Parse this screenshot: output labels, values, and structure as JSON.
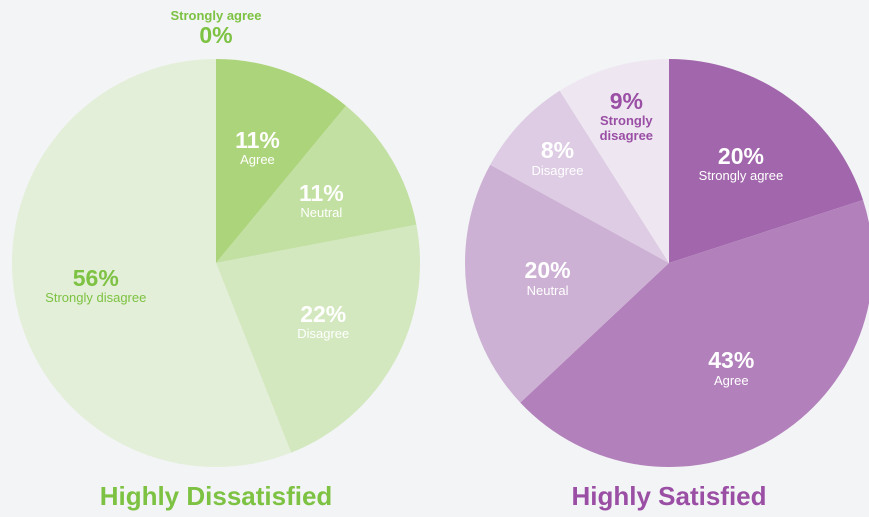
{
  "chart_data": [
    {
      "type": "pie",
      "title": "Highly Dissatisfied",
      "categories": [
        "Strongly agree",
        "Agree",
        "Neutral",
        "Disagree",
        "Strongly disagree"
      ],
      "values": [
        0,
        11,
        11,
        22,
        56
      ],
      "value_labels": [
        "0%",
        "11%",
        "11%",
        "22%",
        "56%"
      ],
      "colors": [
        "#8cc63f",
        "#acd47a",
        "#c2e0a2",
        "#d3e8bf",
        "#e3efd8"
      ],
      "label_colors": [
        "#7dc242",
        "#ffffff",
        "#ffffff",
        "#ffffff",
        "#7dc242"
      ],
      "title_color": "#7dc242"
    },
    {
      "type": "pie",
      "title": "Highly Satisfied",
      "categories": [
        "Strongly agree",
        "Agree",
        "Neutral",
        "Disagree",
        "Strongly disagree"
      ],
      "values": [
        20,
        43,
        20,
        8,
        9
      ],
      "value_labels": [
        "20%",
        "43%",
        "20%",
        "8%",
        "9%"
      ],
      "colors": [
        "#a166ab",
        "#b280bb",
        "#cdb1d4",
        "#ddcce3",
        "#eee7f1"
      ],
      "label_colors": [
        "#ffffff",
        "#ffffff",
        "#ffffff",
        "#ffffff",
        "#9a4fa5"
      ],
      "title_color": "#9a4fa5"
    }
  ]
}
